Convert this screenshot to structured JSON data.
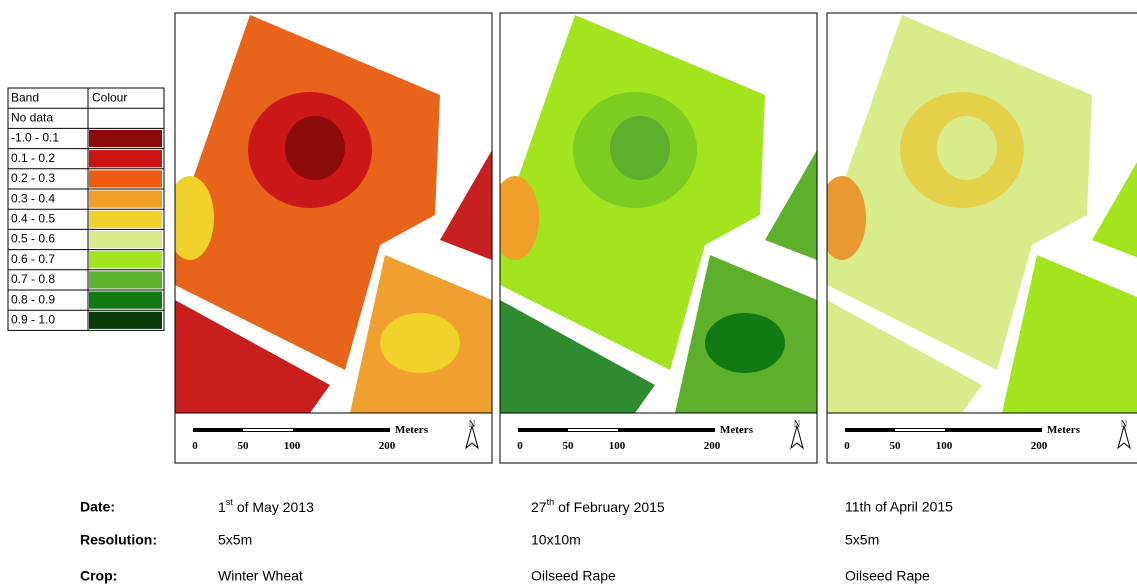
{
  "legend": {
    "headers": [
      "Band",
      "Colour"
    ],
    "rows": [
      {
        "band": "No data",
        "color": "#ffffff"
      },
      {
        "band": "-1.0 - 0.1",
        "color": "#8b0a0a"
      },
      {
        "band": "0.1 - 0.2",
        "color": "#cc1212"
      },
      {
        "band": "0.2 - 0.3",
        "color": "#ee5a12"
      },
      {
        "band": "0.3 - 0.4",
        "color": "#f0a028"
      },
      {
        "band": "0.4 - 0.5",
        "color": "#f0d22a"
      },
      {
        "band": "0.5 - 0.6",
        "color": "#d8ec8c"
      },
      {
        "band": "0.6 - 0.7",
        "color": "#a2e41e"
      },
      {
        "band": "0.7 - 0.8",
        "color": "#5cb02c"
      },
      {
        "band": "0.8 - 0.9",
        "color": "#127a12"
      },
      {
        "band": "0.9 - 1.0",
        "color": "#0a3a0a"
      }
    ]
  },
  "scale": {
    "ticks": [
      "0",
      "50",
      "100",
      "200"
    ],
    "unit": "Meters",
    "north": "N"
  },
  "info": {
    "labels": [
      "Date:",
      "Resolution:",
      "Crop:"
    ]
  },
  "panels": [
    {
      "date": {
        "day": "1",
        "suffix": "st",
        "rest": "of May 2013"
      },
      "resolution": "5x5m",
      "crop": "Winter Wheat"
    },
    {
      "date": {
        "day": "27",
        "suffix": "th",
        "rest": "of February 2015"
      },
      "resolution": "10x10m",
      "crop": "Oilseed Rape"
    },
    {
      "date": "11th of April 2015",
      "resolution": "5x5m",
      "crop": "Oilseed Rape"
    }
  ]
}
